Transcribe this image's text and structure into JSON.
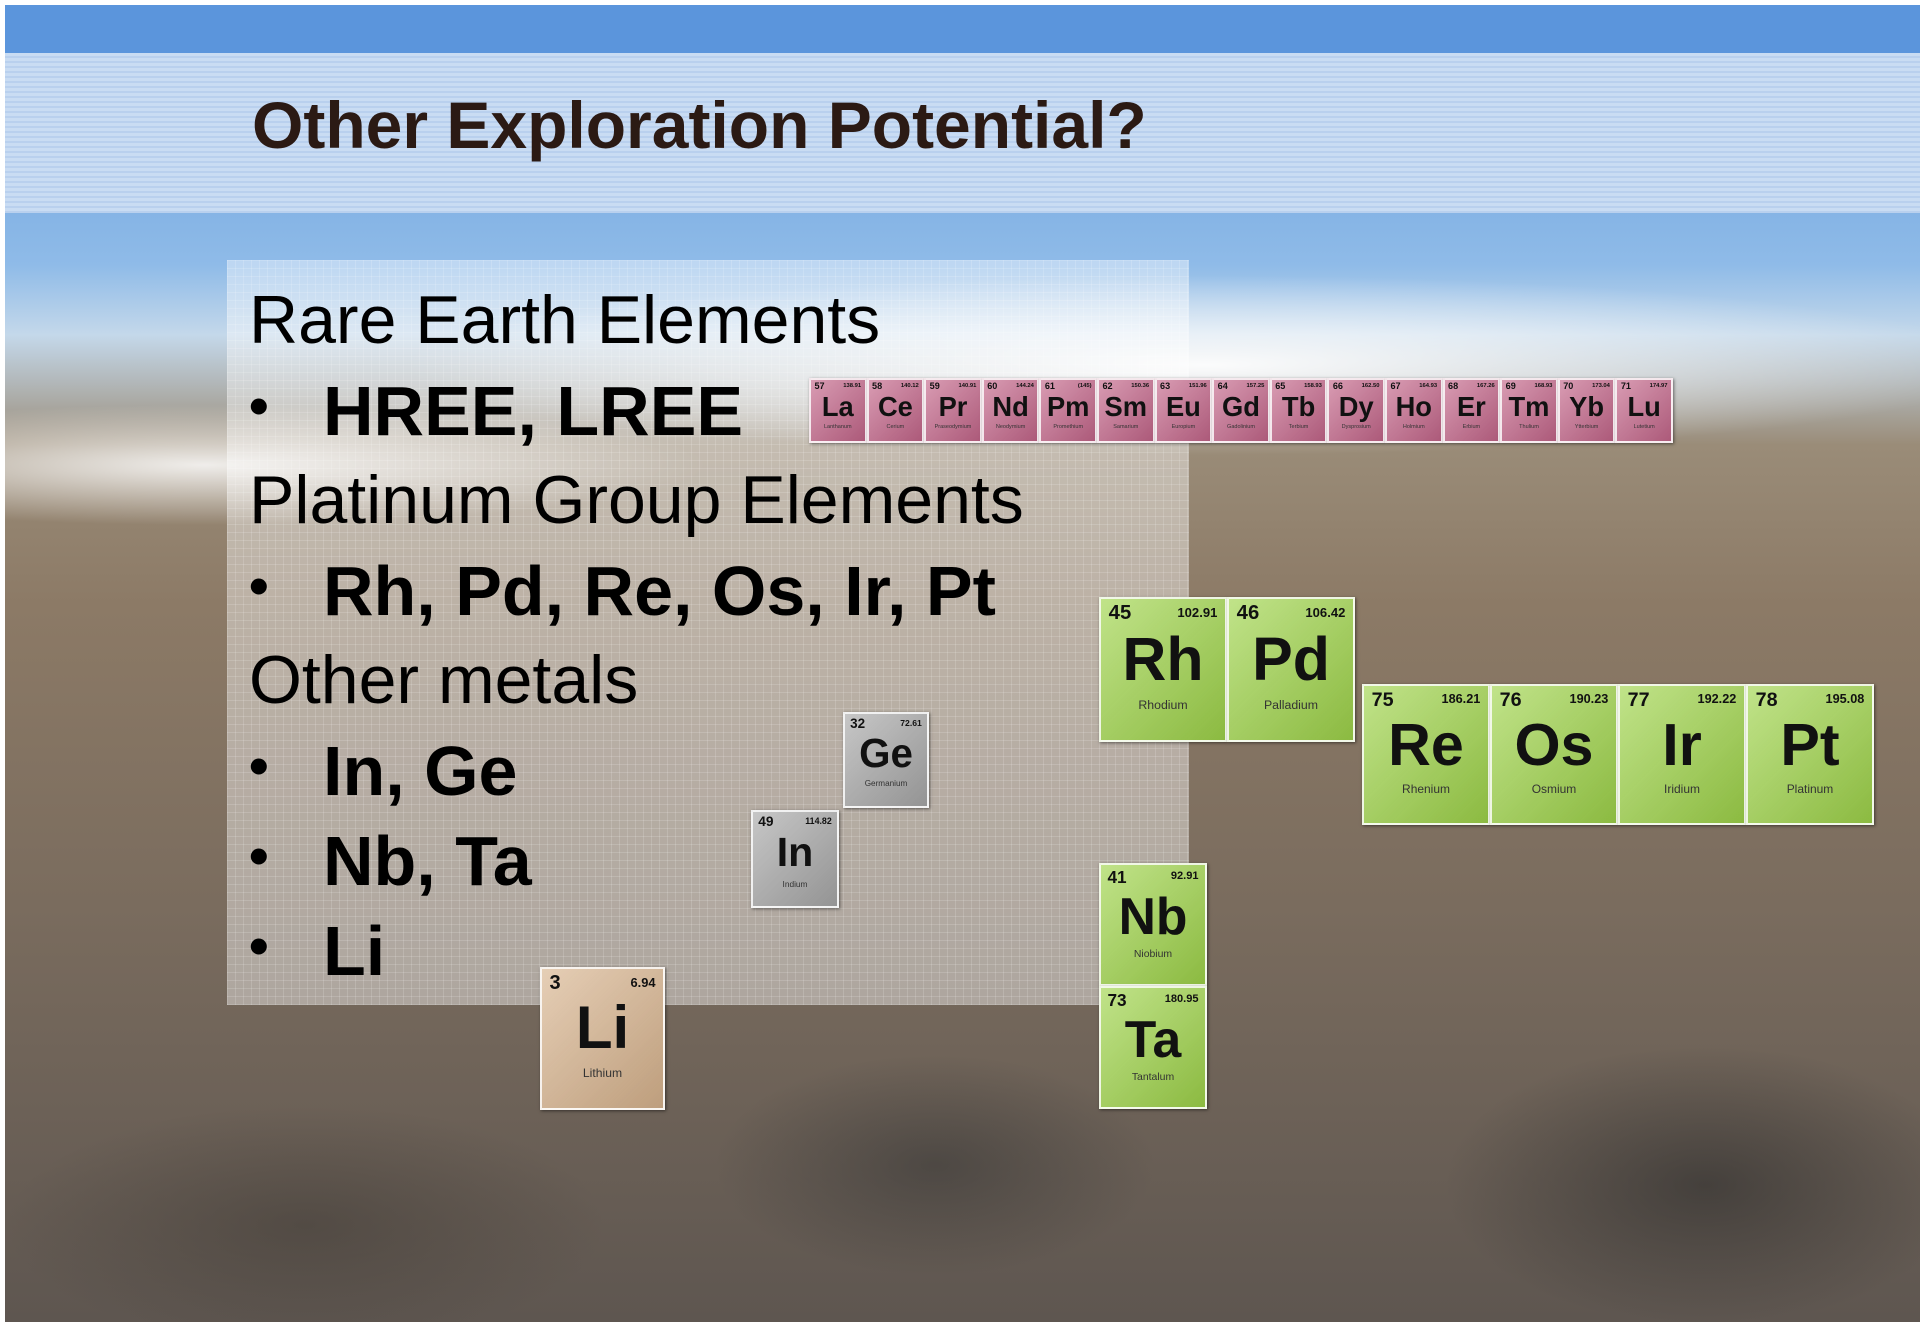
{
  "header": {
    "title": "Other Exploration Potential?"
  },
  "list": [
    {
      "text": "Rare Earth Elements",
      "level": 0
    },
    {
      "text": "HREE, LREE",
      "level": 1
    },
    {
      "text": "Platinum Group Elements",
      "level": 0
    },
    {
      "text": "Rh, Pd, Re, Os, Ir, Pt",
      "level": 1
    },
    {
      "text": "Other metals",
      "level": 0
    },
    {
      "text": "In, Ge",
      "level": 1
    },
    {
      "text": "Nb, Ta",
      "level": 1
    },
    {
      "text": "Li",
      "level": 1
    }
  ],
  "element_tiles": {
    "ree": {
      "color": "#c4668a",
      "tiles": [
        {
          "number": 57,
          "mass": "138.91",
          "symbol": "La",
          "name": "Lanthanum"
        },
        {
          "number": 58,
          "mass": "140.12",
          "symbol": "Ce",
          "name": "Cerium"
        },
        {
          "number": 59,
          "mass": "140.91",
          "symbol": "Pr",
          "name": "Praseodymium"
        },
        {
          "number": 60,
          "mass": "144.24",
          "symbol": "Nd",
          "name": "Neodymium"
        },
        {
          "number": 61,
          "mass": "(145)",
          "symbol": "Pm",
          "name": "Promethium"
        },
        {
          "number": 62,
          "mass": "150.36",
          "symbol": "Sm",
          "name": "Samarium"
        },
        {
          "number": 63,
          "mass": "151.96",
          "symbol": "Eu",
          "name": "Europium"
        },
        {
          "number": 64,
          "mass": "157.25",
          "symbol": "Gd",
          "name": "Gadolinium"
        },
        {
          "number": 65,
          "mass": "158.93",
          "symbol": "Tb",
          "name": "Terbium"
        },
        {
          "number": 66,
          "mass": "162.50",
          "symbol": "Dy",
          "name": "Dysprosium"
        },
        {
          "number": 67,
          "mass": "164.93",
          "symbol": "Ho",
          "name": "Holmium"
        },
        {
          "number": 68,
          "mass": "167.26",
          "symbol": "Er",
          "name": "Erbium"
        },
        {
          "number": 69,
          "mass": "168.93",
          "symbol": "Tm",
          "name": "Thulium"
        },
        {
          "number": 70,
          "mass": "173.04",
          "symbol": "Yb",
          "name": "Ytterbium"
        },
        {
          "number": 71,
          "mass": "174.97",
          "symbol": "Lu",
          "name": "Lutetium"
        }
      ]
    },
    "pgm_a": {
      "color": "#9fd44a",
      "tiles": [
        {
          "number": 45,
          "mass": "102.91",
          "symbol": "Rh",
          "name": "Rhodium"
        },
        {
          "number": 46,
          "mass": "106.42",
          "symbol": "Pd",
          "name": "Palladium"
        }
      ]
    },
    "pgm_b": {
      "color": "#9fd44a",
      "tiles": [
        {
          "number": 75,
          "mass": "186.21",
          "symbol": "Re",
          "name": "Rhenium"
        },
        {
          "number": 76,
          "mass": "190.23",
          "symbol": "Os",
          "name": "Osmium"
        },
        {
          "number": 77,
          "mass": "192.22",
          "symbol": "Ir",
          "name": "Iridium"
        },
        {
          "number": 78,
          "mass": "195.08",
          "symbol": "Pt",
          "name": "Platinum"
        }
      ]
    },
    "nbta": {
      "color": "#9fd44a",
      "tiles": [
        {
          "number": 41,
          "mass": "92.91",
          "symbol": "Nb",
          "name": "Niobium"
        },
        {
          "number": 73,
          "mass": "180.95",
          "symbol": "Ta",
          "name": "Tantalum"
        }
      ]
    },
    "ge": {
      "color": "#a8a8a8",
      "tiles": [
        {
          "number": 32,
          "mass": "72.61",
          "symbol": "Ge",
          "name": "Germanium"
        }
      ]
    },
    "in": {
      "color": "#a8a8a8",
      "tiles": [
        {
          "number": 49,
          "mass": "114.82",
          "symbol": "In",
          "name": "Indium"
        }
      ]
    },
    "li": {
      "color": "#d8b48e",
      "tiles": [
        {
          "number": 3,
          "mass": "6.94",
          "symbol": "Li",
          "name": "Lithium"
        }
      ]
    }
  }
}
